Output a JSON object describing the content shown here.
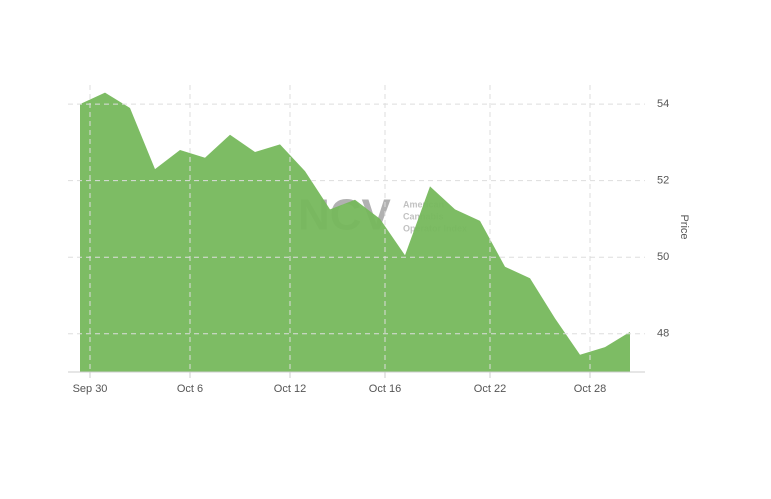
{
  "chart_data": {
    "type": "area",
    "y_label": "Price",
    "watermark": {
      "logo": "NCV",
      "lines": [
        "American",
        "Cannabis",
        "Operator Index"
      ]
    },
    "color": "#76b85c",
    "x": [
      0,
      1,
      2,
      3,
      4,
      5,
      6,
      7,
      8,
      9,
      10,
      11,
      12,
      13,
      14,
      15,
      16,
      17,
      18,
      19,
      20,
      21,
      22
    ],
    "values": [
      54.0,
      54.3,
      53.9,
      52.3,
      52.8,
      52.6,
      53.2,
      52.75,
      52.95,
      52.25,
      51.25,
      51.5,
      51.0,
      50.05,
      51.85,
      51.25,
      50.95,
      49.75,
      49.45,
      48.4,
      47.45,
      47.65,
      48.05
    ],
    "xlim": [
      0,
      22
    ],
    "xticks": [
      {
        "value": 0.4,
        "label": "Sep 30"
      },
      {
        "value": 4.4,
        "label": "Oct 6"
      },
      {
        "value": 8.4,
        "label": "Oct 12"
      },
      {
        "value": 12.2,
        "label": "Oct 16"
      },
      {
        "value": 16.4,
        "label": "Oct 22"
      },
      {
        "value": 20.4,
        "label": "Oct 28"
      }
    ],
    "ylim": [
      47,
      54.5
    ],
    "yticks": [
      48,
      50,
      52,
      54
    ],
    "grid": true
  }
}
